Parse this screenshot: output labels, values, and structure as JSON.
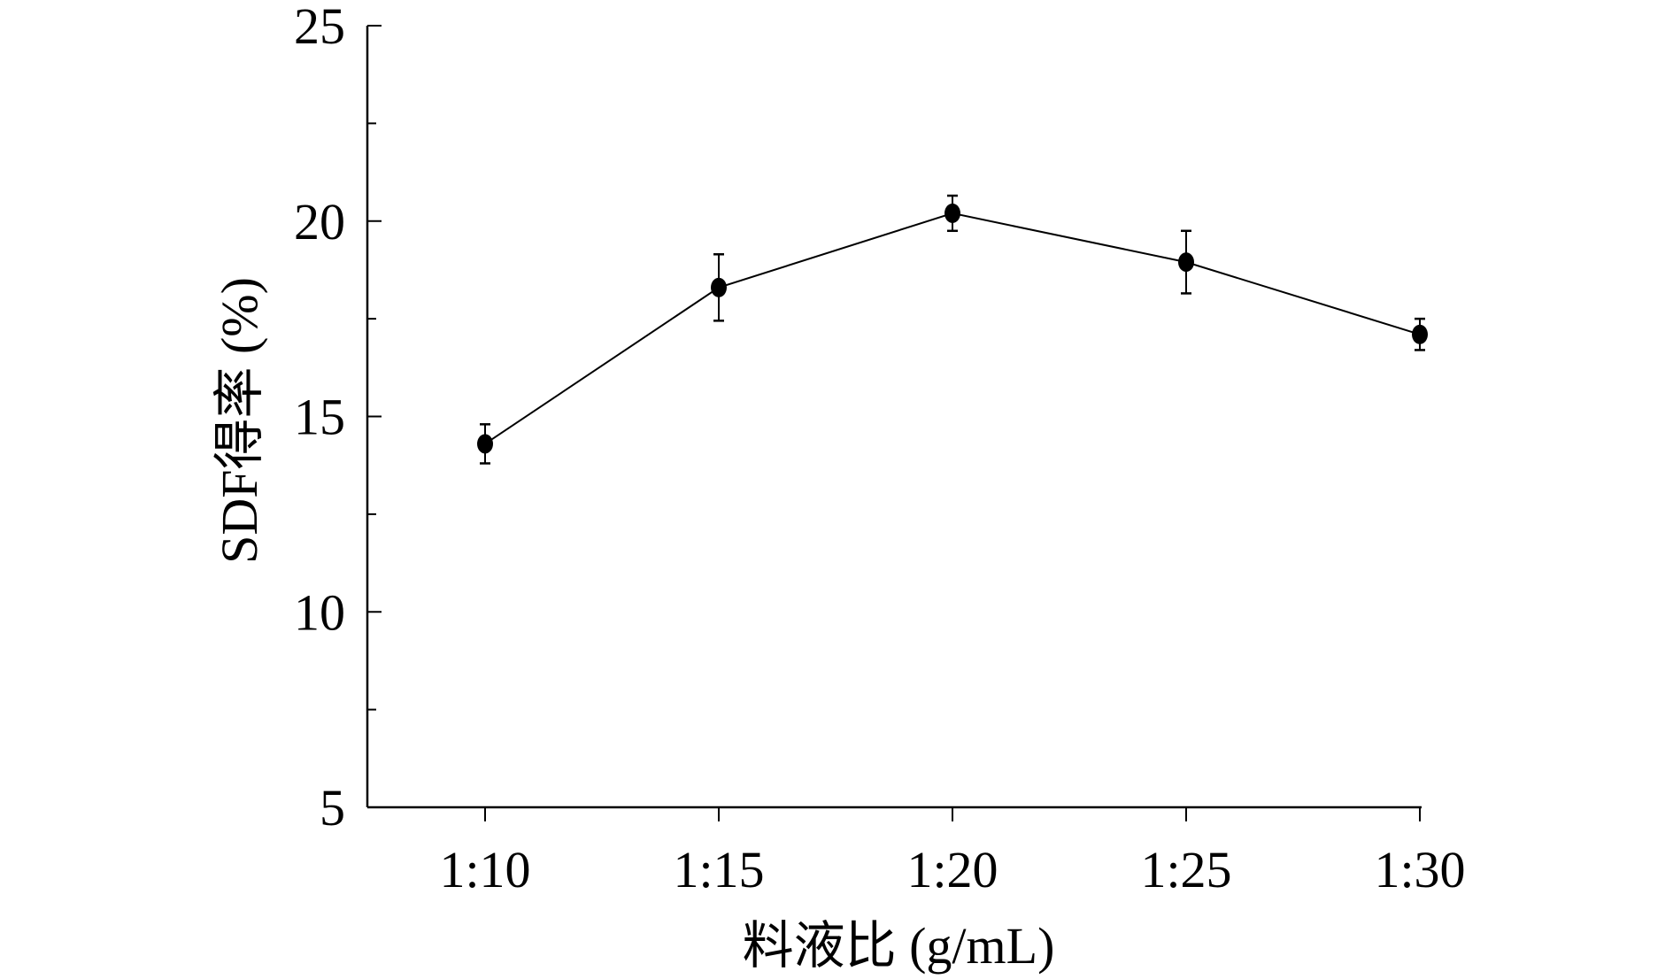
{
  "chart_data": {
    "type": "line",
    "title": "",
    "xlabel": "料液比 (g/mL)",
    "ylabel": "SDF得率 (%)",
    "categories": [
      "1:10",
      "1:15",
      "1:20",
      "1:25",
      "1:30"
    ],
    "series": [
      {
        "name": "SDF得率",
        "values": [
          14.3,
          18.3,
          20.2,
          18.95,
          17.1
        ],
        "errors": [
          0.5,
          0.85,
          0.45,
          0.8,
          0.4
        ],
        "color": "#000000",
        "marker": "filled-circle"
      }
    ],
    "ylim": [
      5,
      25
    ],
    "yticks": [
      5,
      10,
      15,
      20,
      25
    ],
    "yminor_step": 2.5,
    "grid": false,
    "legend": "none"
  }
}
